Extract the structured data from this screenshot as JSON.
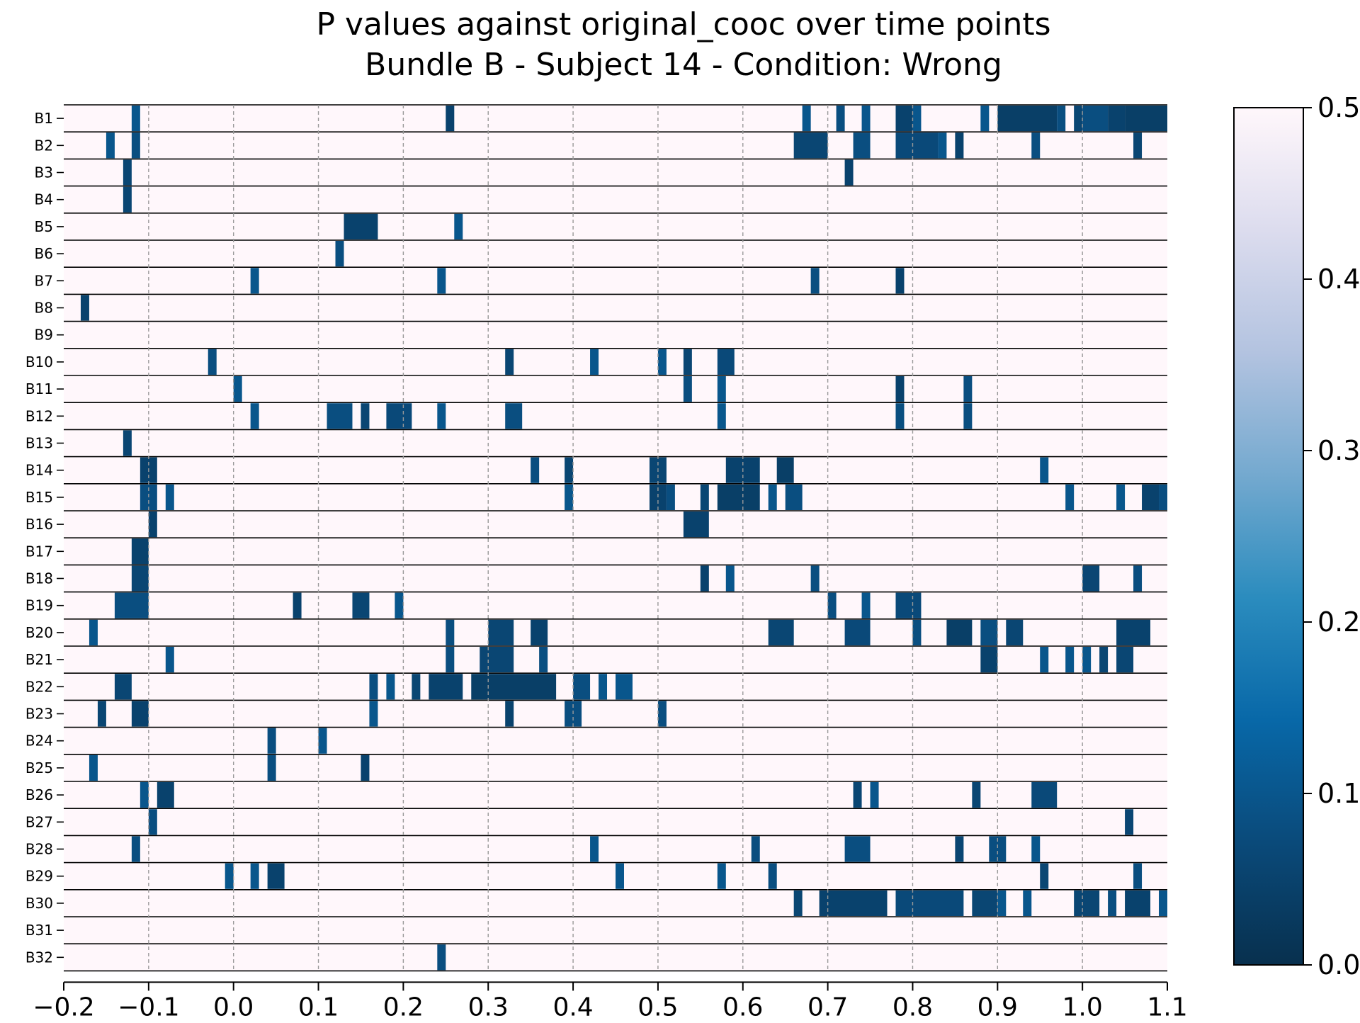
{
  "chart_data": {
    "type": "heatmap",
    "title_line1": "P values against original_cooc over time points",
    "title_line2": "Bundle B - Subject 14 - Condition: Wrong",
    "xlabel": "",
    "ylabel": "",
    "xlim": [
      -0.2,
      1.1
    ],
    "x_ticks": [
      "−0.2",
      "−0.1",
      "0.0",
      "0.1",
      "0.2",
      "0.3",
      "0.4",
      "0.5",
      "0.6",
      "0.7",
      "0.8",
      "0.9",
      "1.0",
      "1.1"
    ],
    "x_tick_values": [
      -0.2,
      -0.1,
      0.0,
      0.1,
      0.2,
      0.3,
      0.4,
      0.5,
      0.6,
      0.7,
      0.8,
      0.9,
      1.0,
      1.1
    ],
    "grid": "dashed vertical lines at every 0.1",
    "bin_width": 0.01,
    "rows": [
      "B1",
      "B2",
      "B3",
      "B4",
      "B5",
      "B6",
      "B7",
      "B8",
      "B9",
      "B10",
      "B11",
      "B12",
      "B13",
      "B14",
      "B15",
      "B16",
      "B17",
      "B18",
      "B19",
      "B20",
      "B21",
      "B22",
      "B23",
      "B24",
      "B25",
      "B26",
      "B27",
      "B28",
      "B29",
      "B30",
      "B31",
      "B32"
    ],
    "colorbar": {
      "min": 0.0,
      "max": 0.5,
      "ticks": [
        "0.0",
        "0.1",
        "0.2",
        "0.3",
        "0.4",
        "0.5"
      ],
      "tick_values": [
        0.0,
        0.1,
        0.2,
        0.3,
        0.4,
        0.5
      ],
      "colors": [
        "#08304e",
        "#0a4a7a",
        "#0868a8",
        "#2b8cbe",
        "#74a9cf",
        "#b3c3e0",
        "#dcdcee",
        "#fff7fb"
      ]
    },
    "background_value": 0.5,
    "segments": [
      [
        [
          -0.12,
          -0.11,
          0.1
        ],
        [
          0.25,
          0.26,
          0.05
        ],
        [
          0.67,
          0.68,
          0.1
        ],
        [
          0.71,
          0.72,
          0.08
        ],
        [
          0.74,
          0.75,
          0.1
        ],
        [
          0.78,
          0.8,
          0.05
        ],
        [
          0.8,
          0.81,
          0.1
        ],
        [
          0.88,
          0.89,
          0.1
        ],
        [
          0.9,
          0.97,
          0.04
        ],
        [
          0.97,
          0.98,
          0.08
        ],
        [
          0.99,
          1.0,
          0.06
        ],
        [
          1.0,
          1.03,
          0.08
        ],
        [
          1.03,
          1.05,
          0.05
        ],
        [
          1.05,
          1.1,
          0.04
        ]
      ],
      [
        [
          -0.15,
          -0.14,
          0.1
        ],
        [
          -0.12,
          -0.11,
          0.08
        ],
        [
          0.66,
          0.7,
          0.06
        ],
        [
          0.73,
          0.75,
          0.08
        ],
        [
          0.78,
          0.83,
          0.07
        ],
        [
          0.83,
          0.84,
          0.1
        ],
        [
          0.85,
          0.86,
          0.05
        ],
        [
          0.94,
          0.95,
          0.08
        ],
        [
          1.06,
          1.07,
          0.06
        ]
      ],
      [
        [
          -0.13,
          -0.12,
          0.06
        ],
        [
          0.72,
          0.73,
          0.05
        ]
      ],
      [
        [
          -0.13,
          -0.12,
          0.06
        ]
      ],
      [
        [
          0.13,
          0.17,
          0.05
        ],
        [
          0.26,
          0.27,
          0.1
        ]
      ],
      [
        [
          0.12,
          0.13,
          0.08
        ]
      ],
      [
        [
          0.02,
          0.03,
          0.1
        ],
        [
          0.24,
          0.25,
          0.1
        ],
        [
          0.68,
          0.69,
          0.08
        ],
        [
          0.78,
          0.79,
          0.05
        ]
      ],
      [
        [
          -0.18,
          -0.17,
          0.05
        ]
      ],
      [],
      [
        [
          -0.03,
          -0.02,
          0.08
        ],
        [
          0.32,
          0.33,
          0.06
        ],
        [
          0.42,
          0.43,
          0.1
        ],
        [
          0.5,
          0.51,
          0.1
        ],
        [
          0.53,
          0.54,
          0.06
        ],
        [
          0.57,
          0.59,
          0.07
        ]
      ],
      [
        [
          0.0,
          0.01,
          0.1
        ],
        [
          0.53,
          0.54,
          0.08
        ],
        [
          0.57,
          0.58,
          0.1
        ],
        [
          0.78,
          0.79,
          0.05
        ],
        [
          0.86,
          0.87,
          0.08
        ]
      ],
      [
        [
          0.02,
          0.03,
          0.1
        ],
        [
          0.11,
          0.14,
          0.08
        ],
        [
          0.15,
          0.16,
          0.06
        ],
        [
          0.18,
          0.21,
          0.07
        ],
        [
          0.24,
          0.25,
          0.1
        ],
        [
          0.32,
          0.34,
          0.08
        ],
        [
          0.57,
          0.58,
          0.1
        ],
        [
          0.78,
          0.79,
          0.08
        ],
        [
          0.86,
          0.87,
          0.08
        ]
      ],
      [
        [
          -0.13,
          -0.12,
          0.06
        ]
      ],
      [
        [
          -0.11,
          -0.09,
          0.05
        ],
        [
          0.35,
          0.36,
          0.08
        ],
        [
          0.39,
          0.4,
          0.06
        ],
        [
          0.49,
          0.51,
          0.06
        ],
        [
          0.58,
          0.62,
          0.05
        ],
        [
          0.64,
          0.66,
          0.04
        ],
        [
          0.95,
          0.96,
          0.1
        ]
      ],
      [
        [
          -0.11,
          -0.09,
          0.08
        ],
        [
          -0.08,
          -0.07,
          0.1
        ],
        [
          0.39,
          0.4,
          0.1
        ],
        [
          0.49,
          0.51,
          0.05
        ],
        [
          0.51,
          0.52,
          0.08
        ],
        [
          0.55,
          0.56,
          0.06
        ],
        [
          0.57,
          0.62,
          0.04
        ],
        [
          0.63,
          0.64,
          0.1
        ],
        [
          0.65,
          0.67,
          0.08
        ],
        [
          0.98,
          0.99,
          0.1
        ],
        [
          1.04,
          1.05,
          0.1
        ],
        [
          1.07,
          1.09,
          0.05
        ],
        [
          1.09,
          1.1,
          0.08
        ]
      ],
      [
        [
          -0.1,
          -0.09,
          0.05
        ],
        [
          0.53,
          0.56,
          0.05
        ]
      ],
      [
        [
          -0.12,
          -0.1,
          0.05
        ]
      ],
      [
        [
          -0.12,
          -0.1,
          0.06
        ],
        [
          0.55,
          0.56,
          0.05
        ],
        [
          0.58,
          0.59,
          0.1
        ],
        [
          0.68,
          0.69,
          0.08
        ],
        [
          1.0,
          1.02,
          0.06
        ],
        [
          1.06,
          1.07,
          0.08
        ]
      ],
      [
        [
          -0.14,
          -0.1,
          0.08
        ],
        [
          0.07,
          0.08,
          0.05
        ],
        [
          0.14,
          0.16,
          0.06
        ],
        [
          0.19,
          0.2,
          0.1
        ],
        [
          0.7,
          0.71,
          0.08
        ],
        [
          0.74,
          0.75,
          0.1
        ],
        [
          0.78,
          0.81,
          0.07
        ]
      ],
      [
        [
          -0.17,
          -0.16,
          0.1
        ],
        [
          0.25,
          0.26,
          0.08
        ],
        [
          0.3,
          0.33,
          0.06
        ],
        [
          0.35,
          0.37,
          0.05
        ],
        [
          0.63,
          0.66,
          0.06
        ],
        [
          0.72,
          0.75,
          0.07
        ],
        [
          0.8,
          0.81,
          0.08
        ],
        [
          0.84,
          0.87,
          0.04
        ],
        [
          0.88,
          0.9,
          0.08
        ],
        [
          0.91,
          0.93,
          0.06
        ],
        [
          1.04,
          1.08,
          0.05
        ]
      ],
      [
        [
          -0.08,
          -0.07,
          0.1
        ],
        [
          0.25,
          0.26,
          0.08
        ],
        [
          0.29,
          0.33,
          0.06
        ],
        [
          0.36,
          0.37,
          0.08
        ],
        [
          0.88,
          0.9,
          0.05
        ],
        [
          0.95,
          0.96,
          0.1
        ],
        [
          0.98,
          0.99,
          0.1
        ],
        [
          1.0,
          1.01,
          0.1
        ],
        [
          1.02,
          1.03,
          0.06
        ],
        [
          1.04,
          1.06,
          0.06
        ]
      ],
      [
        [
          -0.14,
          -0.12,
          0.06
        ],
        [
          0.16,
          0.17,
          0.08
        ],
        [
          0.18,
          0.19,
          0.1
        ],
        [
          0.21,
          0.22,
          0.06
        ],
        [
          0.23,
          0.27,
          0.05
        ],
        [
          0.28,
          0.38,
          0.04
        ],
        [
          0.4,
          0.42,
          0.08
        ],
        [
          0.43,
          0.44,
          0.1
        ],
        [
          0.45,
          0.47,
          0.1
        ]
      ],
      [
        [
          -0.16,
          -0.15,
          0.06
        ],
        [
          -0.12,
          -0.1,
          0.05
        ],
        [
          0.16,
          0.17,
          0.1
        ],
        [
          0.32,
          0.33,
          0.05
        ],
        [
          0.39,
          0.41,
          0.08
        ],
        [
          0.5,
          0.51,
          0.08
        ]
      ],
      [
        [
          0.04,
          0.05,
          0.08
        ],
        [
          0.1,
          0.11,
          0.1
        ]
      ],
      [
        [
          -0.17,
          -0.16,
          0.1
        ],
        [
          0.04,
          0.05,
          0.08
        ],
        [
          0.15,
          0.16,
          0.05
        ]
      ],
      [
        [
          -0.11,
          -0.1,
          0.1
        ],
        [
          -0.09,
          -0.07,
          0.05
        ],
        [
          0.73,
          0.74,
          0.06
        ],
        [
          0.75,
          0.76,
          0.1
        ],
        [
          0.87,
          0.88,
          0.06
        ],
        [
          0.94,
          0.97,
          0.07
        ]
      ],
      [
        [
          -0.1,
          -0.09,
          0.08
        ],
        [
          1.05,
          1.06,
          0.06
        ]
      ],
      [
        [
          -0.12,
          -0.11,
          0.08
        ],
        [
          0.42,
          0.43,
          0.1
        ],
        [
          0.61,
          0.62,
          0.08
        ],
        [
          0.72,
          0.75,
          0.08
        ],
        [
          0.85,
          0.86,
          0.06
        ],
        [
          0.89,
          0.91,
          0.08
        ],
        [
          0.94,
          0.95,
          0.1
        ]
      ],
      [
        [
          -0.01,
          0.0,
          0.1
        ],
        [
          0.02,
          0.03,
          0.1
        ],
        [
          0.04,
          0.06,
          0.05
        ],
        [
          0.45,
          0.46,
          0.1
        ],
        [
          0.57,
          0.58,
          0.1
        ],
        [
          0.63,
          0.64,
          0.08
        ],
        [
          0.95,
          0.96,
          0.06
        ],
        [
          1.06,
          1.07,
          0.08
        ]
      ],
      [
        [
          0.66,
          0.67,
          0.06
        ],
        [
          0.69,
          0.77,
          0.05
        ],
        [
          0.78,
          0.86,
          0.07
        ],
        [
          0.87,
          0.9,
          0.06
        ],
        [
          0.9,
          0.91,
          0.1
        ],
        [
          0.93,
          0.94,
          0.1
        ],
        [
          0.99,
          1.02,
          0.06
        ],
        [
          1.03,
          1.04,
          0.08
        ],
        [
          1.05,
          1.08,
          0.05
        ],
        [
          1.09,
          1.1,
          0.1
        ]
      ],
      [],
      [
        [
          0.24,
          0.25,
          0.08
        ]
      ]
    ]
  }
}
